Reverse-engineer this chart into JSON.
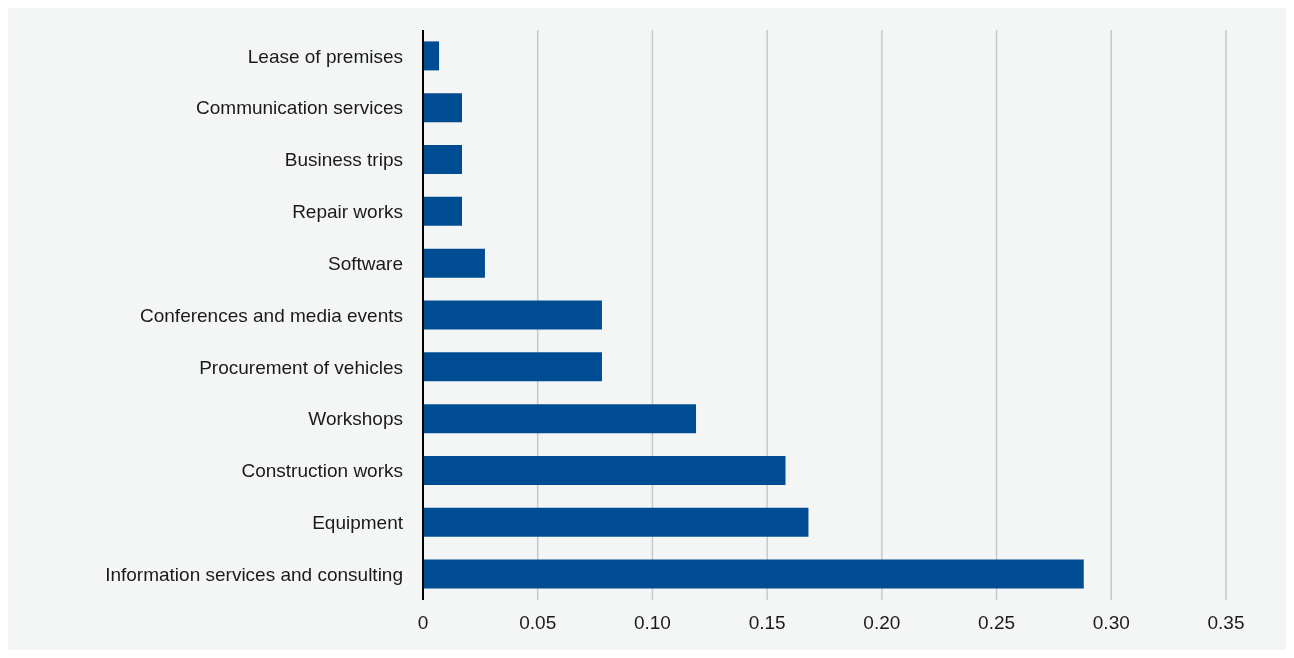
{
  "chart_data": {
    "type": "bar",
    "orientation": "horizontal",
    "categories": [
      "Lease of premises",
      "Communication services",
      "Business trips",
      "Repair works",
      "Software",
      "Conferences and media events",
      "Procurement of vehicles",
      "Workshops",
      "Construction works",
      "Equipment",
      "Information services and consulting"
    ],
    "values": [
      0.007,
      0.017,
      0.017,
      0.017,
      0.027,
      0.078,
      0.078,
      0.119,
      0.158,
      0.168,
      0.288
    ],
    "color": "#004c93",
    "xlim": [
      0,
      0.35
    ],
    "xticks": [
      0,
      {
        "value": 0.05,
        "label": "0.05"
      },
      {
        "value": 0.1,
        "label": "0.10"
      },
      {
        "value": 0.15,
        "label": "0.15"
      },
      {
        "value": 0.2,
        "label": "0.20"
      },
      {
        "value": 0.25,
        "label": "0.25"
      },
      {
        "value": 0.3,
        "label": "0.30"
      },
      {
        "value": 0.35,
        "label": "0.35"
      }
    ],
    "grid": "x"
  }
}
